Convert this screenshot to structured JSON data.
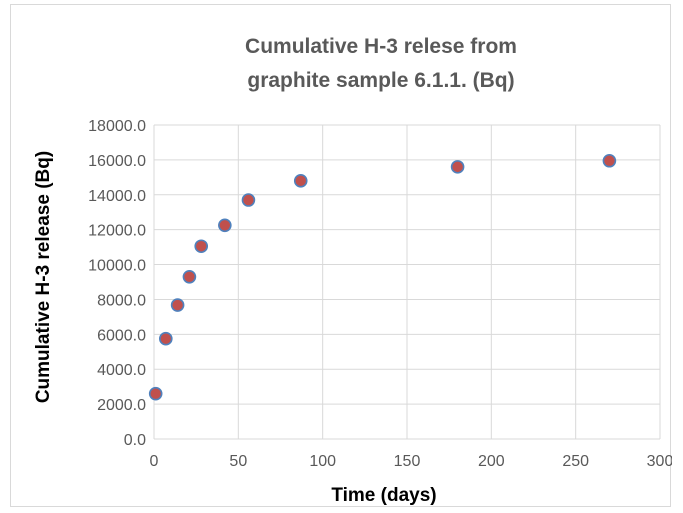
{
  "chart_data": {
    "type": "scatter",
    "title": "Cumulative H-3 relese from graphite sample  6.1.1. (Bq)",
    "title_lines": [
      "Cumulative H-3 relese from",
      "graphite sample  6.1.1. (Bq)"
    ],
    "xlabel": "Time (days)",
    "ylabel": "Cumulative H-3 release (Bq)",
    "xlim": [
      0,
      300
    ],
    "ylim": [
      0,
      18000
    ],
    "x_ticks": [
      "0",
      "50",
      "100",
      "150",
      "200",
      "250",
      "300"
    ],
    "y_ticks": [
      "0.0",
      "2000.0",
      "4000.0",
      "6000.0",
      "8000.0",
      "10000.0",
      "12000.0",
      "14000.0",
      "16000.0",
      "18000.0"
    ],
    "grid": true,
    "legend": "none",
    "marker_fill": "#c0504d",
    "marker_edge": "#4f81bd",
    "grid_color": "#d9d9d9",
    "x": [
      1,
      7,
      14,
      21,
      28,
      42,
      56,
      87,
      180,
      270
    ],
    "y": [
      2600,
      5750,
      7680,
      9300,
      11050,
      12250,
      13700,
      14800,
      15600,
      15950
    ]
  }
}
